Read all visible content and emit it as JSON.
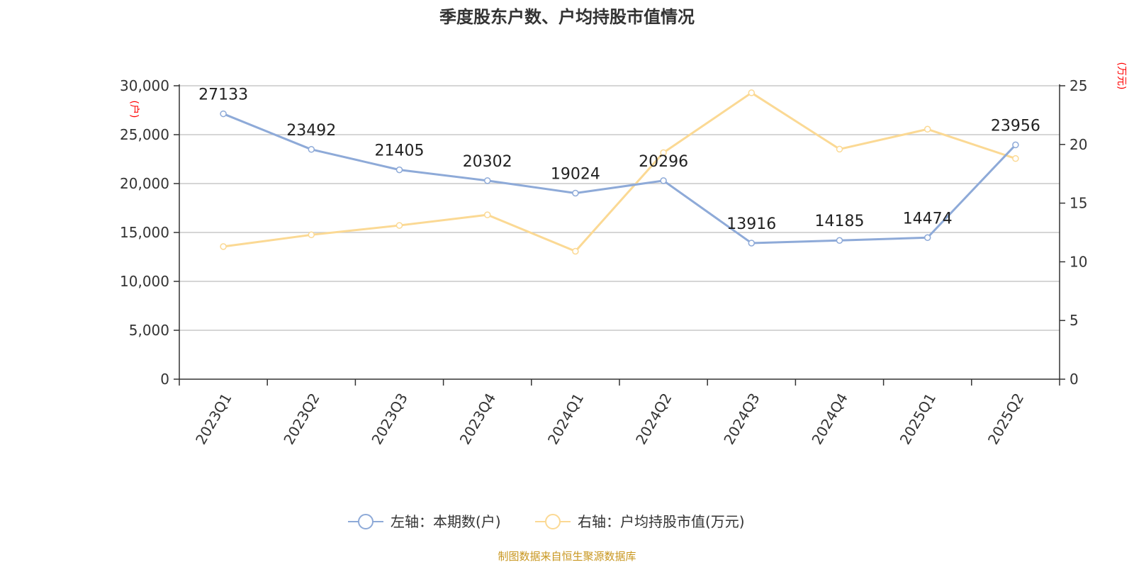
{
  "chart_data": {
    "type": "line",
    "title": "季度股东户数、户均持股市值情况",
    "categories": [
      "2023Q1",
      "2023Q2",
      "2023Q3",
      "2023Q4",
      "2024Q1",
      "2024Q2",
      "2024Q3",
      "2024Q4",
      "2025Q1",
      "2025Q2"
    ],
    "left_axis": {
      "unit": "(户)",
      "ylim": [
        0,
        30000
      ],
      "ticks": [
        "0",
        "5,000",
        "10,000",
        "15,000",
        "20,000",
        "25,000",
        "30,000"
      ]
    },
    "right_axis": {
      "unit": "(万元)",
      "ylim": [
        0,
        25
      ],
      "ticks": [
        "0",
        "5",
        "10",
        "15",
        "20",
        "25"
      ]
    },
    "series": [
      {
        "name": "左轴：本期数(户)",
        "axis": "left",
        "color": "#8eaad8",
        "values": [
          27133,
          23492,
          21405,
          20302,
          19024,
          20296,
          13916,
          14185,
          14474,
          23956
        ],
        "labels": [
          "27133",
          "23492",
          "21405",
          "20302",
          "19024",
          "20296",
          "13916",
          "14185",
          "14474",
          "23956"
        ]
      },
      {
        "name": "右轴：户均持股市值(万元)",
        "axis": "right",
        "color": "#fbd994",
        "values": [
          11.3,
          12.3,
          13.1,
          14.0,
          10.9,
          19.3,
          24.4,
          19.6,
          21.3,
          18.8
        ]
      }
    ],
    "grid": true,
    "legend_position": "bottom-center"
  },
  "source": "制图数据来自恒生聚源数据库"
}
